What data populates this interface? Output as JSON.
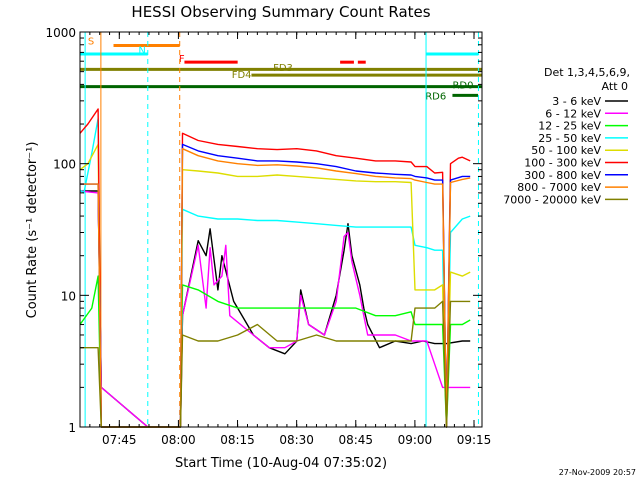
{
  "chart_data": {
    "type": "line",
    "title": "HESSI Observing Summary Count Rates",
    "xlabel": "Start Time (10-Aug-04 07:35:02)",
    "ylabel": "Count Rate (s⁻¹ detector⁻¹)",
    "yscale": "log",
    "xlim_minutes": [
      0,
      102
    ],
    "ylim": [
      1,
      1000
    ],
    "grid": false,
    "legend_position": "right",
    "x_ticks": [
      {
        "t": 9.97,
        "label": "07:45"
      },
      {
        "t": 24.97,
        "label": "08:00"
      },
      {
        "t": 39.97,
        "label": "08:15"
      },
      {
        "t": 54.97,
        "label": "08:30"
      },
      {
        "t": 69.97,
        "label": "08:45"
      },
      {
        "t": 84.97,
        "label": "09:00"
      },
      {
        "t": 99.97,
        "label": "09:15"
      }
    ],
    "y_ticks": [
      {
        "v": 1,
        "label": "1"
      },
      {
        "v": 10,
        "label": "10"
      },
      {
        "v": 100,
        "label": "100"
      },
      {
        "v": 1000,
        "label": "1000"
      }
    ],
    "legend_title": [
      "Det 1,3,4,5,6,9,",
      "Att 0"
    ],
    "series": [
      {
        "name": "3 - 6 keV",
        "color": "#000000",
        "data": [
          [
            0,
            62
          ],
          [
            4.6,
            62
          ],
          [
            5.4,
            2
          ],
          [
            17.2,
            1
          ],
          [
            25.5,
            1
          ],
          [
            26,
            7
          ],
          [
            30,
            26
          ],
          [
            32,
            20
          ],
          [
            33,
            32
          ],
          [
            35,
            11
          ],
          [
            36,
            20
          ],
          [
            39,
            9
          ],
          [
            44,
            5
          ],
          [
            48,
            4
          ],
          [
            52,
            3.6
          ],
          [
            55,
            4.5
          ],
          [
            56,
            11
          ],
          [
            58,
            6
          ],
          [
            62,
            5
          ],
          [
            65,
            10
          ],
          [
            67,
            22
          ],
          [
            68,
            35
          ],
          [
            69,
            20
          ],
          [
            71,
            12
          ],
          [
            72,
            8
          ],
          [
            73,
            6
          ],
          [
            76,
            4
          ],
          [
            80,
            4.5
          ],
          [
            84,
            4.3
          ],
          [
            87,
            4.5
          ],
          [
            90,
            4.3
          ],
          [
            93,
            4.3
          ],
          [
            97,
            4.5
          ],
          [
            99,
            4.5
          ]
        ]
      },
      {
        "name": "6 - 12 keV",
        "color": "#ff00ff",
        "data": [
          [
            0,
            62
          ],
          [
            4.6,
            60
          ],
          [
            5.4,
            2
          ],
          [
            17.2,
            1
          ],
          [
            25.5,
            1
          ],
          [
            26,
            7
          ],
          [
            30,
            24
          ],
          [
            32,
            8
          ],
          [
            33,
            23
          ],
          [
            34,
            12
          ],
          [
            36,
            14
          ],
          [
            37,
            24
          ],
          [
            38,
            7
          ],
          [
            44,
            5
          ],
          [
            48,
            4
          ],
          [
            52,
            4
          ],
          [
            55,
            4.5
          ],
          [
            56,
            10
          ],
          [
            58,
            6
          ],
          [
            62,
            5
          ],
          [
            65,
            9
          ],
          [
            67,
            28
          ],
          [
            68,
            30
          ],
          [
            69,
            18
          ],
          [
            71,
            10
          ],
          [
            72,
            7
          ],
          [
            73,
            5
          ],
          [
            76,
            5
          ],
          [
            80,
            5
          ],
          [
            84,
            4.5
          ],
          [
            88,
            4.5
          ],
          [
            90,
            3
          ],
          [
            92,
            2
          ],
          [
            93,
            2
          ],
          [
            99,
            2
          ]
        ]
      },
      {
        "name": "12 - 25 keV",
        "color": "#00ff00",
        "data": [
          [
            0,
            6
          ],
          [
            3,
            8
          ],
          [
            4.6,
            14
          ],
          [
            5.4,
            1
          ],
          [
            17.2,
            1
          ],
          [
            25.5,
            1
          ],
          [
            26,
            12
          ],
          [
            30,
            11
          ],
          [
            35,
            9
          ],
          [
            40,
            8
          ],
          [
            45,
            8
          ],
          [
            50,
            8
          ],
          [
            55,
            8
          ],
          [
            60,
            8
          ],
          [
            65,
            8
          ],
          [
            70,
            8
          ],
          [
            75,
            7
          ],
          [
            80,
            7
          ],
          [
            84,
            7.5
          ],
          [
            85,
            6
          ],
          [
            88,
            6
          ],
          [
            90,
            6
          ],
          [
            92,
            6
          ],
          [
            93,
            1
          ],
          [
            94,
            6
          ],
          [
            97,
            6
          ],
          [
            99,
            6.5
          ]
        ]
      },
      {
        "name": "25 - 50 keV",
        "color": "#00ffff",
        "data": [
          [
            0,
            63
          ],
          [
            1,
            60
          ],
          [
            3,
            120
          ],
          [
            4.6,
            220
          ],
          [
            5.4,
            1
          ],
          [
            17.2,
            1
          ],
          [
            25.5,
            1
          ],
          [
            26,
            45
          ],
          [
            30,
            40
          ],
          [
            35,
            38
          ],
          [
            40,
            38
          ],
          [
            45,
            37
          ],
          [
            50,
            37
          ],
          [
            55,
            36
          ],
          [
            60,
            35
          ],
          [
            65,
            34
          ],
          [
            70,
            33
          ],
          [
            75,
            33
          ],
          [
            80,
            33
          ],
          [
            84,
            33
          ],
          [
            85,
            24
          ],
          [
            88,
            23
          ],
          [
            90,
            22
          ],
          [
            92,
            22
          ],
          [
            93,
            1
          ],
          [
            94,
            30
          ],
          [
            97,
            38
          ],
          [
            99,
            40
          ]
        ]
      },
      {
        "name": "50 - 100 keV",
        "color": "#dddd00",
        "data": [
          [
            0,
            90
          ],
          [
            2,
            100
          ],
          [
            4.6,
            140
          ],
          [
            5.4,
            1
          ],
          [
            17.2,
            1
          ],
          [
            25.5,
            1
          ],
          [
            26,
            90
          ],
          [
            30,
            88
          ],
          [
            35,
            85
          ],
          [
            40,
            80
          ],
          [
            45,
            80
          ],
          [
            50,
            82
          ],
          [
            55,
            80
          ],
          [
            60,
            78
          ],
          [
            65,
            76
          ],
          [
            70,
            74
          ],
          [
            75,
            73
          ],
          [
            80,
            73
          ],
          [
            84,
            72
          ],
          [
            85,
            11
          ],
          [
            88,
            11
          ],
          [
            90,
            11
          ],
          [
            92,
            12
          ],
          [
            93,
            1
          ],
          [
            94,
            15
          ],
          [
            97,
            14
          ],
          [
            99,
            15
          ]
        ]
      },
      {
        "name": "100 - 300 keV",
        "color": "#ff0000",
        "data": [
          [
            0,
            170
          ],
          [
            2,
            200
          ],
          [
            4.6,
            260
          ],
          [
            5.4,
            1
          ],
          [
            17.2,
            1
          ],
          [
            25.5,
            1
          ],
          [
            26,
            170
          ],
          [
            30,
            150
          ],
          [
            35,
            140
          ],
          [
            40,
            135
          ],
          [
            45,
            130
          ],
          [
            50,
            128
          ],
          [
            55,
            130
          ],
          [
            60,
            125
          ],
          [
            65,
            115
          ],
          [
            70,
            110
          ],
          [
            75,
            105
          ],
          [
            80,
            105
          ],
          [
            84,
            103
          ],
          [
            85,
            95
          ],
          [
            88,
            95
          ],
          [
            90,
            85
          ],
          [
            92,
            86
          ],
          [
            93,
            1
          ],
          [
            94,
            100
          ],
          [
            96,
            110
          ],
          [
            97,
            112
          ],
          [
            99,
            105
          ]
        ]
      },
      {
        "name": "300 - 800 keV",
        "color": "#0000ff",
        "data": [
          [
            0,
            70
          ],
          [
            4.6,
            70
          ],
          [
            5.4,
            1
          ],
          [
            17.2,
            1
          ],
          [
            25.5,
            1
          ],
          [
            26,
            140
          ],
          [
            30,
            125
          ],
          [
            35,
            115
          ],
          [
            40,
            110
          ],
          [
            45,
            105
          ],
          [
            50,
            105
          ],
          [
            55,
            103
          ],
          [
            60,
            100
          ],
          [
            65,
            95
          ],
          [
            70,
            88
          ],
          [
            75,
            85
          ],
          [
            80,
            83
          ],
          [
            84,
            82
          ],
          [
            85,
            80
          ],
          [
            88,
            78
          ],
          [
            90,
            75
          ],
          [
            92,
            75
          ],
          [
            93,
            1
          ],
          [
            94,
            75
          ],
          [
            97,
            80
          ],
          [
            99,
            80
          ]
        ]
      },
      {
        "name": "800 - 7000 keV",
        "color": "#ff8000",
        "data": [
          [
            0,
            70
          ],
          [
            4.6,
            70
          ],
          [
            5.4,
            1
          ],
          [
            17.2,
            1
          ],
          [
            25.5,
            1
          ],
          [
            26,
            130
          ],
          [
            30,
            115
          ],
          [
            35,
            105
          ],
          [
            40,
            100
          ],
          [
            45,
            97
          ],
          [
            50,
            98
          ],
          [
            55,
            96
          ],
          [
            60,
            93
          ],
          [
            65,
            88
          ],
          [
            70,
            84
          ],
          [
            75,
            80
          ],
          [
            80,
            78
          ],
          [
            84,
            77
          ],
          [
            85,
            75
          ],
          [
            88,
            72
          ],
          [
            90,
            70
          ],
          [
            92,
            70
          ],
          [
            93,
            1
          ],
          [
            94,
            72
          ],
          [
            97,
            76
          ],
          [
            99,
            78
          ]
        ]
      },
      {
        "name": "7000 - 20000 keV",
        "color": "#808000",
        "data": [
          [
            0,
            4
          ],
          [
            4.6,
            4
          ],
          [
            5.4,
            1
          ],
          [
            17.2,
            1
          ],
          [
            25.5,
            1
          ],
          [
            26,
            5
          ],
          [
            30,
            4.5
          ],
          [
            35,
            4.5
          ],
          [
            40,
            5
          ],
          [
            45,
            6
          ],
          [
            50,
            4.5
          ],
          [
            55,
            4.5
          ],
          [
            60,
            5
          ],
          [
            65,
            4.5
          ],
          [
            70,
            4.5
          ],
          [
            75,
            4.5
          ],
          [
            80,
            4.5
          ],
          [
            84,
            4.5
          ],
          [
            85,
            8
          ],
          [
            88,
            8
          ],
          [
            90,
            8
          ],
          [
            92,
            9
          ],
          [
            93,
            1
          ],
          [
            94,
            9
          ],
          [
            97,
            9
          ],
          [
            99,
            9
          ]
        ]
      }
    ],
    "vertical_lines": [
      {
        "t": 1.3,
        "color": "#00ffff",
        "dash": false
      },
      {
        "t": 5.3,
        "color": "#ff8000",
        "dash": false
      },
      {
        "t": 17.2,
        "color": "#00ffff",
        "dash": true
      },
      {
        "t": 25.3,
        "color": "#ff8000",
        "dash": true
      },
      {
        "t": 87.8,
        "color": "#00ffff",
        "dash": false
      },
      {
        "t": 101.1,
        "color": "#00ffff",
        "dash": true
      }
    ],
    "flag_bars": [
      {
        "v": 790,
        "color": "#ff8000",
        "segments": [
          [
            8.5,
            25.3
          ]
        ],
        "label": "S",
        "label_t": 2.0,
        "label_v": 860
      },
      {
        "v": 680,
        "color": "#00ffff",
        "segments": [
          [
            0,
            17.2
          ],
          [
            87.8,
            101.1
          ]
        ],
        "label": "N",
        "label_t": 14.8,
        "label_v": 735
      },
      {
        "v": 590,
        "color": "#ff0000",
        "segments": [
          [
            26.5,
            40
          ],
          [
            66,
            69.5
          ],
          [
            70.5,
            72.5
          ]
        ],
        "label": "F",
        "label_t": 25.1,
        "label_v": 635
      },
      {
        "v": 520,
        "color": "#808000",
        "segments": [
          [
            0,
            102
          ]
        ],
        "label": "FD3",
        "label_t": 49,
        "label_v": 540
      },
      {
        "v": 470,
        "color": "#808000",
        "segments": [
          [
            43.5,
            102
          ]
        ],
        "label": "FD4",
        "label_t": 38.5,
        "label_v": 480
      },
      {
        "v": 385,
        "color": "#006400",
        "segments": [
          [
            0,
            102
          ]
        ],
        "label": "RD0",
        "label_t": 94.5,
        "label_v": 400
      },
      {
        "v": 330,
        "color": "#006400",
        "segments": [
          [
            94.5,
            101
          ]
        ],
        "label": "RD6",
        "label_t": 87.6,
        "label_v": 330
      }
    ],
    "timestamp": "27-Nov-2009 20:57"
  }
}
